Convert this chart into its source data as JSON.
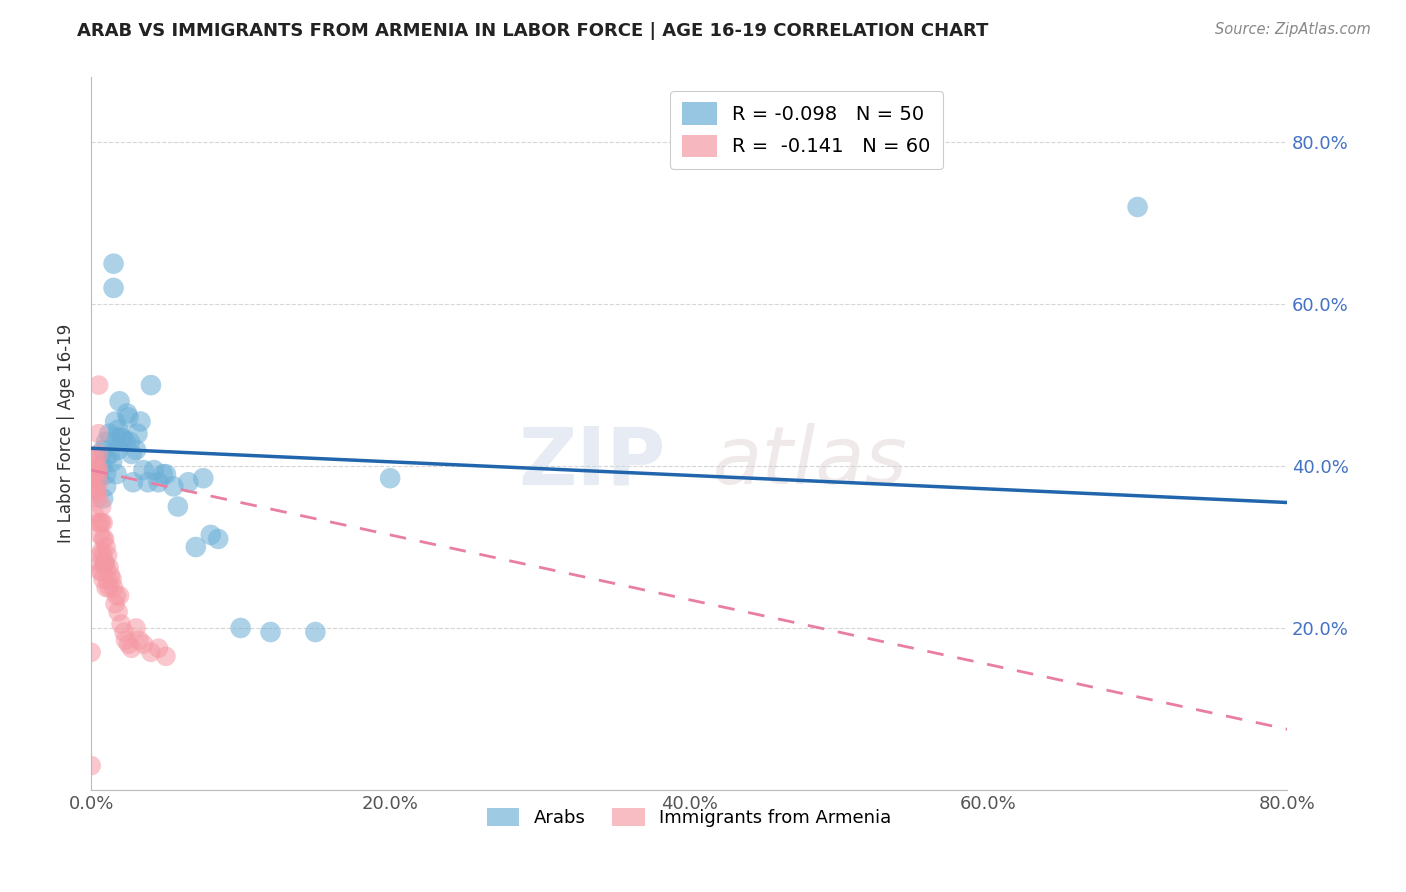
{
  "title": "ARAB VS IMMIGRANTS FROM ARMENIA IN LABOR FORCE | AGE 16-19 CORRELATION CHART",
  "source": "Source: ZipAtlas.com",
  "ylabel": "In Labor Force | Age 16-19",
  "xlim": [
    0.0,
    0.8
  ],
  "ylim": [
    0.0,
    0.88
  ],
  "ytick_positions": [
    0.0,
    0.2,
    0.4,
    0.6,
    0.8
  ],
  "ytick_labels_left": [
    "",
    "",
    "",
    "",
    ""
  ],
  "ytick_labels_right": [
    "",
    "20.0%",
    "40.0%",
    "60.0%",
    "80.0%"
  ],
  "xtick_labels": [
    "0.0%",
    "",
    "20.0%",
    "",
    "40.0%",
    "",
    "60.0%",
    "",
    "80.0%"
  ],
  "xtick_positions": [
    0.0,
    0.1,
    0.2,
    0.3,
    0.4,
    0.5,
    0.6,
    0.7,
    0.8
  ],
  "legend_r_arab": "-0.098",
  "legend_n_arab": "50",
  "legend_r_armenia": "-0.141",
  "legend_n_armenia": "60",
  "color_arab": "#6baed6",
  "color_armenia": "#f599a4",
  "trendline_arab_color": "#2166ac",
  "trendline_armenia_color": "#e87fa0",
  "watermark_zip": "ZIP",
  "watermark_atlas": "atlas",
  "arab_x": [
    0.005,
    0.007,
    0.008,
    0.008,
    0.009,
    0.01,
    0.01,
    0.01,
    0.01,
    0.012,
    0.013,
    0.014,
    0.015,
    0.015,
    0.016,
    0.017,
    0.017,
    0.018,
    0.018,
    0.019,
    0.02,
    0.021,
    0.023,
    0.024,
    0.025,
    0.026,
    0.027,
    0.028,
    0.03,
    0.031,
    0.033,
    0.035,
    0.038,
    0.04,
    0.042,
    0.045,
    0.048,
    0.05,
    0.055,
    0.058,
    0.065,
    0.07,
    0.075,
    0.08,
    0.085,
    0.1,
    0.12,
    0.15,
    0.2,
    0.7
  ],
  "arab_y": [
    0.385,
    0.4,
    0.42,
    0.36,
    0.28,
    0.41,
    0.39,
    0.375,
    0.43,
    0.44,
    0.415,
    0.405,
    0.65,
    0.62,
    0.455,
    0.435,
    0.39,
    0.445,
    0.42,
    0.48,
    0.435,
    0.435,
    0.43,
    0.465,
    0.46,
    0.43,
    0.415,
    0.38,
    0.42,
    0.44,
    0.455,
    0.395,
    0.38,
    0.5,
    0.395,
    0.38,
    0.39,
    0.39,
    0.375,
    0.35,
    0.38,
    0.3,
    0.385,
    0.315,
    0.31,
    0.2,
    0.195,
    0.195,
    0.385,
    0.72
  ],
  "armenia_x": [
    0.0,
    0.0,
    0.001,
    0.001,
    0.002,
    0.002,
    0.002,
    0.003,
    0.003,
    0.003,
    0.004,
    0.004,
    0.004,
    0.005,
    0.005,
    0.005,
    0.005,
    0.005,
    0.005,
    0.005,
    0.006,
    0.006,
    0.006,
    0.006,
    0.006,
    0.007,
    0.007,
    0.007,
    0.007,
    0.008,
    0.008,
    0.008,
    0.008,
    0.009,
    0.009,
    0.01,
    0.01,
    0.01,
    0.011,
    0.011,
    0.012,
    0.012,
    0.013,
    0.014,
    0.015,
    0.016,
    0.017,
    0.018,
    0.019,
    0.02,
    0.022,
    0.023,
    0.025,
    0.027,
    0.03,
    0.032,
    0.035,
    0.04,
    0.045,
    0.05
  ],
  "armenia_y": [
    0.03,
    0.17,
    0.41,
    0.38,
    0.39,
    0.37,
    0.34,
    0.41,
    0.395,
    0.365,
    0.4,
    0.39,
    0.37,
    0.5,
    0.44,
    0.415,
    0.395,
    0.38,
    0.36,
    0.33,
    0.33,
    0.315,
    0.29,
    0.28,
    0.27,
    0.35,
    0.33,
    0.295,
    0.27,
    0.33,
    0.31,
    0.29,
    0.26,
    0.31,
    0.28,
    0.3,
    0.275,
    0.25,
    0.29,
    0.26,
    0.275,
    0.25,
    0.265,
    0.26,
    0.25,
    0.23,
    0.24,
    0.22,
    0.24,
    0.205,
    0.195,
    0.185,
    0.18,
    0.175,
    0.2,
    0.185,
    0.18,
    0.17,
    0.175,
    0.165
  ]
}
